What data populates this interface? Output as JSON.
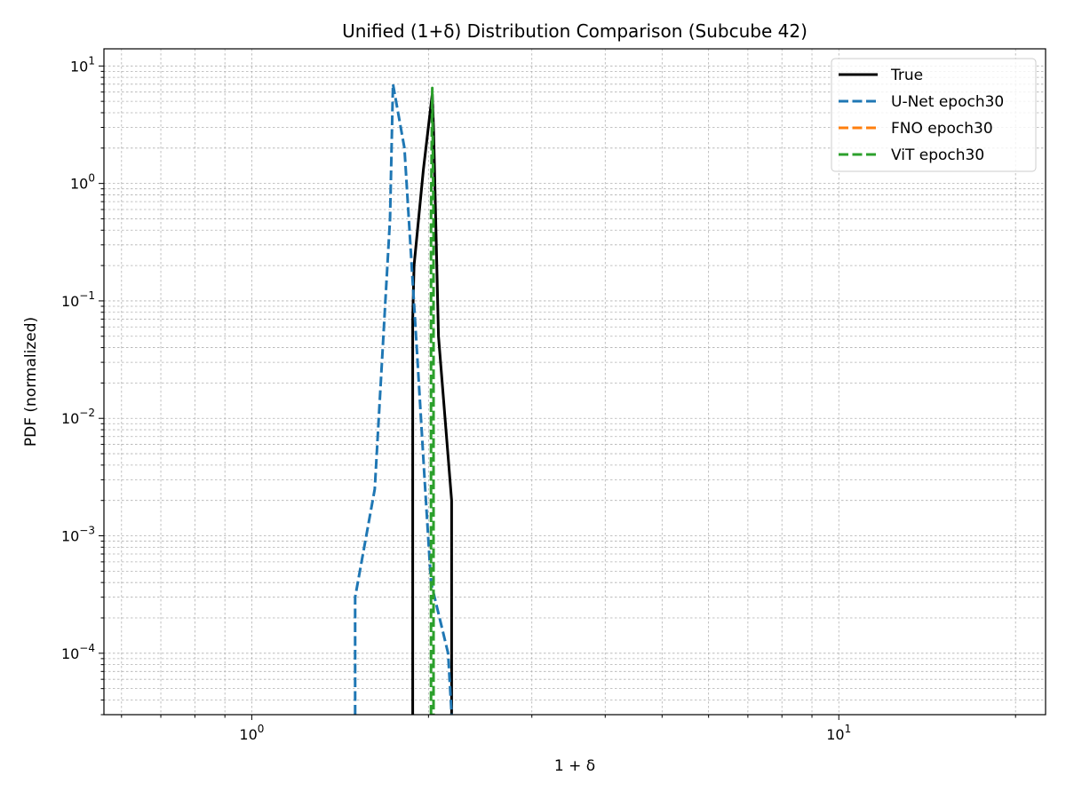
{
  "chart_data": {
    "type": "line",
    "title": "Unified (1+δ) Distribution Comparison (Subcube 42)",
    "xlabel": "1 + δ",
    "ylabel": "PDF (normalized)",
    "xscale": "log",
    "yscale": "log",
    "xlim": [
      0.56,
      22.5
    ],
    "ylim": [
      3e-05,
      14
    ],
    "x_ticks": [
      {
        "value": 1,
        "base": "10",
        "exp": "0"
      },
      {
        "value": 10,
        "base": "10",
        "exp": "1"
      }
    ],
    "y_ticks": [
      {
        "value": 0.0001,
        "base": "10",
        "exp": "−4"
      },
      {
        "value": 0.001,
        "base": "10",
        "exp": "−3"
      },
      {
        "value": 0.01,
        "base": "10",
        "exp": "−2"
      },
      {
        "value": 0.1,
        "base": "10",
        "exp": "−1"
      },
      {
        "value": 1,
        "base": "10",
        "exp": "0"
      },
      {
        "value": 10,
        "base": "10",
        "exp": "1"
      }
    ],
    "grid": true,
    "legend_position": "top-right",
    "series": [
      {
        "name": "True",
        "color": "#000000",
        "style": "solid",
        "x": [
          1.88,
          1.88,
          1.89,
          1.96,
          2.03,
          2.04,
          2.08,
          2.19,
          2.19
        ],
        "y": [
          3e-05,
          0.07,
          0.2,
          1.3,
          5.8,
          3.0,
          0.05,
          0.002,
          3e-05
        ]
      },
      {
        "name": "U-Net epoch30",
        "color": "#1f77b4",
        "style": "dashed",
        "x": [
          1.5,
          1.5,
          1.62,
          1.72,
          1.74,
          1.82,
          1.91,
          1.97,
          2.02,
          2.16,
          2.19
        ],
        "y": [
          3e-05,
          0.0003,
          0.0025,
          0.5,
          7.0,
          2.0,
          0.04,
          0.003,
          0.0004,
          0.0001,
          3e-05
        ]
      },
      {
        "name": "FNO epoch30",
        "color": "#ff7f0e",
        "style": "dashed",
        "x": [],
        "y": []
      },
      {
        "name": "ViT epoch30",
        "color": "#2ca02c",
        "style": "dashed",
        "x": [
          2.02,
          2.02,
          2.03,
          2.04,
          2.04
        ],
        "y": [
          3e-05,
          0.5,
          6.5,
          0.5,
          3e-05
        ]
      }
    ]
  }
}
